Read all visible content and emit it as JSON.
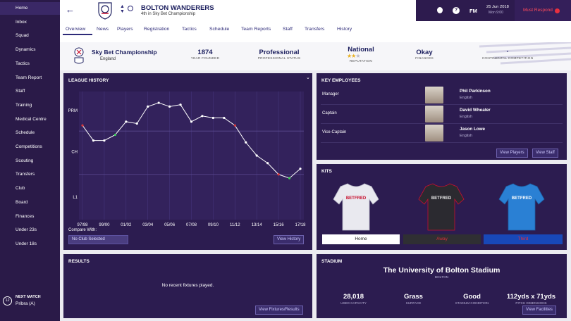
{
  "sidebar": {
    "items": [
      "Home",
      "Inbox",
      "Squad",
      "Dynamics",
      "Tactics",
      "Team Report",
      "Staff",
      "Training",
      "Medical Centre",
      "Schedule",
      "Competitions",
      "Scouting",
      "Transfers",
      "Club",
      "Board",
      "Finances",
      "Under 23s",
      "Under 18s"
    ],
    "next_match": {
      "label": "NEXT MATCH",
      "opponent": "Pribra (A)",
      "badge": "12"
    }
  },
  "header": {
    "club": "BOLTON WANDERERS",
    "subtitle": "4th in Sky Bet Championship",
    "game": "FM",
    "date": "25 Jun 2018",
    "time": "Mon 9:00",
    "action": "Must Respond"
  },
  "tabs": [
    "Overview",
    "News",
    "Players",
    "Registration",
    "Tactics",
    "Schedule",
    "Team Reports",
    "Staff",
    "Transfers",
    "History"
  ],
  "info": {
    "league": "Sky Bet Championship",
    "country": "England",
    "founded": {
      "value": "1874",
      "label": "YEAR FOUNDED"
    },
    "status": {
      "value": "Professional",
      "label": "PROFESSIONAL STATUS"
    },
    "reputation": {
      "value": "National",
      "label": "REPUTATION"
    },
    "finances": {
      "value": "Okay",
      "label": "FINANCES"
    },
    "continental": {
      "value": "-",
      "label": "CONTINENTAL COMPETITION"
    }
  },
  "league_history": {
    "title": "LEAGUE HISTORY",
    "chart": {
      "type": "line",
      "categories": [
        "97/98",
        null,
        "99/00",
        null,
        "01/02",
        null,
        "03/04",
        null,
        "05/06",
        null,
        "07/08",
        null,
        "09/10",
        null,
        "11/12",
        null,
        "13/14",
        null,
        "15/16",
        null,
        "17/18"
      ],
      "values": [
        18,
        26,
        26,
        23,
        16,
        17,
        8,
        6,
        8,
        7,
        16,
        13,
        14,
        14,
        18,
        27,
        34,
        38,
        44,
        46,
        41
      ],
      "marker_colors": [
        "#e03a3a",
        "#ffffff",
        "#ffffff",
        "#3ccf5a",
        "#ffffff",
        "#ffffff",
        "#ffffff",
        "#ffffff",
        "#ffffff",
        "#ffffff",
        "#ffffff",
        "#ffffff",
        "#ffffff",
        "#ffffff",
        "#e03a3a",
        "#ffffff",
        "#ffffff",
        "#ffffff",
        "#e03a3a",
        "#3ccf5a",
        "#ffffff"
      ],
      "color": "#ffffff",
      "ylim": [
        0,
        68
      ],
      "yticks": [
        {
          "value": 10,
          "label": "PRM"
        },
        {
          "value": 32,
          "label": "CH"
        },
        {
          "value": 56,
          "label": "L1"
        }
      ]
    },
    "compare_label": "Compare With:",
    "compare_value": "No Club Selected",
    "button": "View History"
  },
  "key_employees": {
    "title": "KEY EMPLOYEES",
    "rows": [
      {
        "role": "Manager",
        "name": "Phil Parkinson",
        "nationality": "English"
      },
      {
        "role": "Captain",
        "name": "David Wheater",
        "nationality": "English"
      },
      {
        "role": "Vice-Captain",
        "name": "Jason Lowe",
        "nationality": "English"
      }
    ],
    "buttons": [
      "View Players",
      "View Staff"
    ]
  },
  "kits": {
    "title": "KITS",
    "sponsor": "BETFRED",
    "tabs": [
      "Home",
      "Away",
      "Third"
    ]
  },
  "results": {
    "title": "RESULTS",
    "message": "No recent fixtures played.",
    "button": "View Fixtures/Results"
  },
  "stadium": {
    "title": "STADIUM",
    "name": "The University of Bolton Stadium",
    "city": "BOLTON",
    "stats": [
      {
        "value": "28,018",
        "label": "USED CAPACITY"
      },
      {
        "value": "Grass",
        "label": "SURFACE"
      },
      {
        "value": "Good",
        "label": "STADIUM CONDITION"
      },
      {
        "value": "112yds x 71yds",
        "label": "PITCH DIMENSIONS"
      }
    ],
    "button": "View Facilities"
  }
}
